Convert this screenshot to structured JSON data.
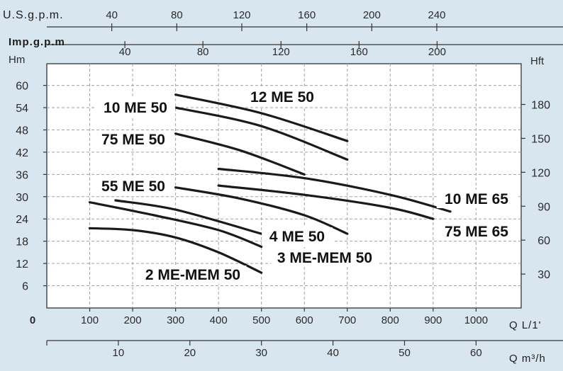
{
  "chart_data": {
    "type": "line",
    "axes": {
      "top_usgpm": {
        "title": "U.S.g.p.m.",
        "ticks": [
          "40",
          "80",
          "120",
          "160",
          "200",
          "240"
        ],
        "values": [
          40,
          80,
          120,
          160,
          200,
          240
        ]
      },
      "top_impgpm": {
        "title": "Imp.g.p.m",
        "ticks": [
          "40",
          "80",
          "120",
          "160",
          "200"
        ],
        "values": [
          40,
          80,
          120,
          160,
          200
        ]
      },
      "left_m": {
        "title": "Hm",
        "ticks": [
          "6",
          "12",
          "18",
          "24",
          "30",
          "36",
          "42",
          "48",
          "54",
          "60"
        ],
        "values": [
          6,
          12,
          18,
          24,
          30,
          36,
          42,
          48,
          54,
          60
        ]
      },
      "right_ft": {
        "title": "Hft",
        "ticks": [
          "30",
          "60",
          "90",
          "120",
          "150",
          "180"
        ],
        "values": [
          30,
          60,
          90,
          120,
          150,
          180
        ]
      },
      "bottom_lmin": {
        "title": "Q L/1'",
        "ticks": [
          "0",
          "100",
          "200",
          "300",
          "400",
          "500",
          "600",
          "700",
          "800",
          "900",
          "1000"
        ],
        "values": [
          0,
          100,
          200,
          300,
          400,
          500,
          600,
          700,
          800,
          900,
          1000
        ]
      },
      "bottom_m3h": {
        "title": "Q m³/h",
        "ticks": [
          "10",
          "20",
          "30",
          "40",
          "50",
          "60"
        ],
        "values": [
          10,
          20,
          30,
          40,
          50,
          60
        ]
      }
    },
    "xlim": [
      0,
      1000
    ],
    "ylim": [
      0,
      62
    ],
    "grid": true,
    "series": [
      {
        "name": "12 ME 50",
        "x": [
          300,
          500,
          700
        ],
        "y": [
          57.5,
          52.5,
          45
        ]
      },
      {
        "name": "10 ME 50",
        "x": [
          300,
          500,
          700
        ],
        "y": [
          54,
          49,
          40
        ]
      },
      {
        "name": "75 ME 50",
        "x": [
          300,
          450,
          600
        ],
        "y": [
          47,
          42.5,
          36
        ]
      },
      {
        "name": "10 ME 65",
        "x": [
          400,
          600,
          800,
          940
        ],
        "y": [
          37.5,
          35,
          30.5,
          26
        ]
      },
      {
        "name": "75 ME 65",
        "x": [
          400,
          600,
          800,
          900
        ],
        "y": [
          33,
          30.5,
          27,
          24
        ]
      },
      {
        "name": "55 ME 50",
        "x": [
          300,
          450,
          600,
          700
        ],
        "y": [
          32.5,
          29.5,
          25,
          20
        ]
      },
      {
        "name": "4 ME 50",
        "x": [
          160,
          300,
          500
        ],
        "y": [
          29,
          26.5,
          20
        ]
      },
      {
        "name": "3 ME-MEM 50",
        "x": [
          100,
          250,
          400,
          500
        ],
        "y": [
          28.5,
          25,
          21,
          16.5
        ]
      },
      {
        "name": "2 ME-MEM 50",
        "x": [
          100,
          200,
          300,
          400,
          500
        ],
        "y": [
          21.5,
          21,
          19,
          15,
          9.5
        ]
      }
    ]
  }
}
